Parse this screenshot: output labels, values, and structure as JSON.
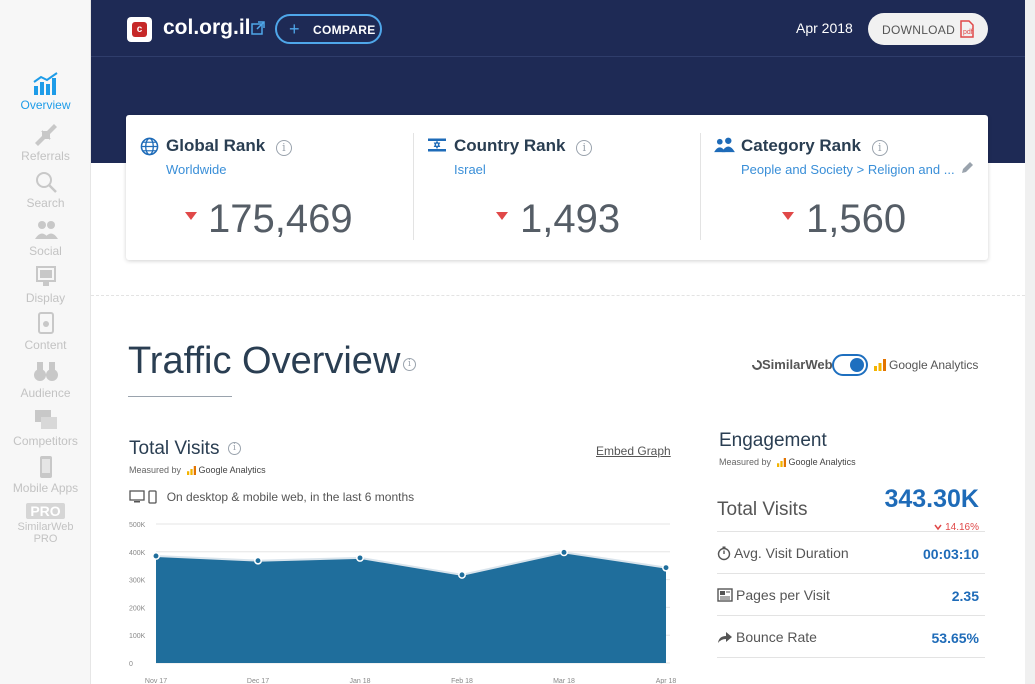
{
  "sidebar": {
    "items": [
      {
        "label": "Overview",
        "icon": "bar-chart-icon",
        "active": true
      },
      {
        "label": "Referrals",
        "icon": "arrows-icon",
        "active": false
      },
      {
        "label": "Search",
        "icon": "magnifier-icon",
        "active": false
      },
      {
        "label": "Social",
        "icon": "people-icon",
        "active": false
      },
      {
        "label": "Display",
        "icon": "display-icon",
        "active": false
      },
      {
        "label": "Content",
        "icon": "content-icon",
        "active": false
      },
      {
        "label": "Audience",
        "icon": "binoculars-icon",
        "active": false
      },
      {
        "label": "Competitors",
        "icon": "competitors-icon",
        "active": false
      },
      {
        "label": "Mobile Apps",
        "icon": "mobile-icon",
        "active": false
      }
    ],
    "pro": {
      "badge": "PRO",
      "line1": "SimilarWeb",
      "line2": "PRO"
    }
  },
  "header": {
    "site_name": "col.org.il",
    "compare_label": "COMPARE",
    "date": "Apr 2018",
    "download_label": "DOWNLOAD"
  },
  "ranks": {
    "global": {
      "title": "Global Rank",
      "sub": "Worldwide",
      "value": "175,469"
    },
    "country": {
      "title": "Country Rank",
      "sub": "Israel",
      "value": "1,493"
    },
    "category": {
      "title": "Category Rank",
      "sub": "People and Society > Religion and ...",
      "value": "1,560"
    }
  },
  "traffic": {
    "title": "Traffic Overview",
    "toggle": {
      "left": "SimilarWeb",
      "right": "Google Analytics"
    },
    "visits_title": "Total Visits",
    "measured_by": "Measured by",
    "measured_source": "Google Analytics",
    "embed_label": "Embed Graph",
    "device_note": "On desktop & mobile web, in the last 6 months"
  },
  "chart_data": {
    "type": "area",
    "categories": [
      "Nov 17",
      "Dec 17",
      "Jan 18",
      "Feb 18",
      "Mar 18",
      "Apr 18"
    ],
    "values": [
      385000,
      368000,
      378000,
      317000,
      398000,
      343000
    ],
    "y_ticks": [
      "500K",
      "400K",
      "300K",
      "200K",
      "100K",
      "0"
    ],
    "ylim": [
      0,
      500000
    ],
    "color": "#1f6e9c",
    "grid": true
  },
  "engagement": {
    "title": "Engagement",
    "measured_by": "Measured by",
    "measured_source": "Google Analytics",
    "total_visits_label": "Total Visits",
    "total_visits_value": "343.30K",
    "total_visits_change": "14.16%",
    "rows": [
      {
        "label": "Avg. Visit Duration",
        "value": "00:03:10",
        "icon": "stopwatch-icon"
      },
      {
        "label": "Pages per Visit",
        "value": "2.35",
        "icon": "pages-icon"
      },
      {
        "label": "Bounce Rate",
        "value": "53.65%",
        "icon": "bounce-arrow-icon"
      }
    ]
  },
  "colors": {
    "header_bg": "#1e2a55",
    "accent": "#1e9ce8",
    "link": "#3a8fd8",
    "value_blue": "#1e6bb8",
    "decline_red": "#e04848"
  }
}
